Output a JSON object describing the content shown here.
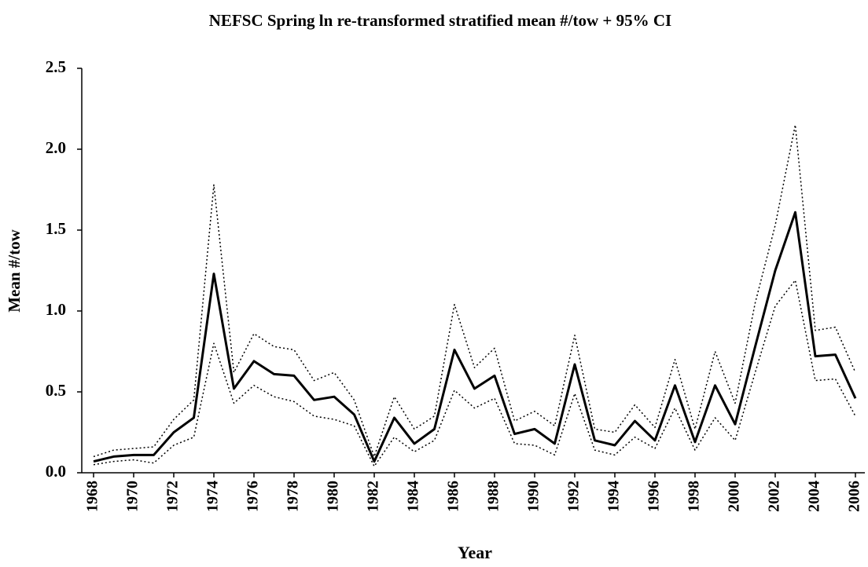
{
  "chart_data": {
    "type": "line",
    "title": "NEFSC Spring ln re-transformed stratified mean #/tow + 95% CI",
    "xlabel": "Year",
    "ylabel": "Mean #/tow",
    "x": [
      1968,
      1969,
      1970,
      1971,
      1972,
      1973,
      1974,
      1975,
      1976,
      1977,
      1978,
      1979,
      1980,
      1981,
      1982,
      1983,
      1984,
      1985,
      1986,
      1987,
      1988,
      1989,
      1990,
      1991,
      1992,
      1993,
      1994,
      1995,
      1996,
      1997,
      1998,
      1999,
      2000,
      2001,
      2002,
      2003,
      2004,
      2005,
      2006
    ],
    "series": [
      {
        "color": "#000000",
        "line_style": "solid",
        "line_width": 3,
        "values": [
          0.07,
          0.1,
          0.11,
          0.11,
          0.25,
          0.34,
          1.23,
          0.52,
          0.69,
          0.61,
          0.6,
          0.45,
          0.47,
          0.36,
          0.07,
          0.34,
          0.18,
          0.27,
          0.76,
          0.52,
          0.6,
          0.24,
          0.27,
          0.18,
          0.67,
          0.2,
          0.17,
          0.32,
          0.2,
          0.54,
          0.19,
          0.54,
          0.3,
          0.78,
          1.25,
          1.61,
          0.72,
          0.73,
          0.46
        ]
      },
      {
        "color": "#000000",
        "line_style": "dotted",
        "line_width": 1.5,
        "values": [
          0.1,
          0.14,
          0.15,
          0.16,
          0.33,
          0.45,
          1.78,
          0.62,
          0.86,
          0.78,
          0.76,
          0.57,
          0.62,
          0.45,
          0.1,
          0.47,
          0.27,
          0.35,
          1.04,
          0.65,
          0.77,
          0.32,
          0.38,
          0.29,
          0.85,
          0.27,
          0.25,
          0.42,
          0.28,
          0.7,
          0.27,
          0.75,
          0.43,
          1.05,
          1.53,
          2.15,
          0.88,
          0.9,
          0.62
        ]
      },
      {
        "color": "#000000",
        "line_style": "dotted",
        "line_width": 1.5,
        "values": [
          0.05,
          0.07,
          0.08,
          0.06,
          0.17,
          0.22,
          0.8,
          0.43,
          0.54,
          0.47,
          0.44,
          0.35,
          0.33,
          0.29,
          0.04,
          0.22,
          0.13,
          0.2,
          0.51,
          0.4,
          0.46,
          0.18,
          0.17,
          0.11,
          0.49,
          0.14,
          0.11,
          0.22,
          0.15,
          0.4,
          0.14,
          0.34,
          0.2,
          0.62,
          1.03,
          1.19,
          0.57,
          0.58,
          0.35
        ]
      }
    ],
    "xlim": [
      1968,
      2006
    ],
    "xticks": [
      1968,
      1970,
      1972,
      1974,
      1976,
      1978,
      1980,
      1982,
      1984,
      1986,
      1988,
      1990,
      1992,
      1994,
      1996,
      1998,
      2000,
      2002,
      2004,
      2006
    ],
    "ylim": [
      0,
      2.5
    ],
    "yticks": [
      {
        "value": 0,
        "label": "0.0"
      },
      0.5,
      {
        "value": 1,
        "label": "1.0"
      },
      1.5,
      {
        "value": 2,
        "label": "2.0"
      },
      2.5
    ],
    "grid": false
  }
}
